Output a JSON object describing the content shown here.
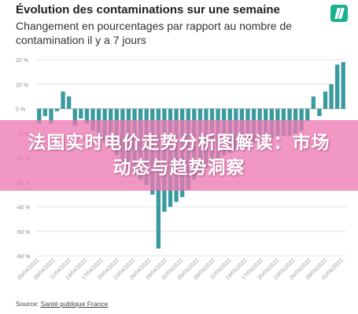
{
  "header": {
    "title": "Évolution des contaminations sur une semaine",
    "subtitle": "Changement en pourcentages par rapport au nombre de contamination il y a 7 jours"
  },
  "logo": {
    "icon": "huffpost-logo-icon",
    "color": "#19b38e"
  },
  "overlay": {
    "text": "法国实时电价走势分析图解读：市场动态与趋势洞察"
  },
  "source": {
    "label": "Source: ",
    "link_text": "Santé publique France"
  },
  "chart_data": {
    "type": "bar",
    "title": "Évolution des contaminations sur une semaine",
    "subtitle": "Changement en pourcentages par rapport au nombre de contamination il y a 7 jours",
    "bar_color": "#3a9a9e",
    "ylim": [
      -60,
      20
    ],
    "yticks": [
      -60,
      -50,
      -40,
      -30,
      -20,
      -10,
      0,
      10,
      20
    ],
    "ytick_labels": [
      "-60 %",
      "-50 %",
      "-40 %",
      "-30 %",
      "-20 %",
      "-10 %",
      "0 %",
      "10 %",
      "20 %"
    ],
    "xtick_labels": [
      "05/04/2022",
      "08/04/2022",
      "11/04/2022",
      "14/04/2022",
      "17/04/2022",
      "20/04/2022",
      "23/04/2022",
      "26/04/2022",
      "29/04/2022",
      "02/05/2022",
      "05/05/2022",
      "08/05/2022",
      "11/05/2022",
      "14/05/2022",
      "17/05/2022",
      "20/05/2022",
      "23/05/2022",
      "26/05/2022",
      "29/05/2022",
      "02/06/2022"
    ],
    "grid": true,
    "values": [
      -6,
      -3,
      -6,
      -1,
      7,
      5,
      -7,
      -4,
      -6,
      -9,
      -12,
      -14,
      -16,
      -19,
      -22,
      -25,
      -27,
      -29,
      -31,
      -35,
      -57,
      -42,
      -40,
      -38,
      -36,
      -33,
      -29,
      -26,
      -24,
      -22,
      -20,
      -19,
      -18,
      -17,
      -16,
      -15,
      -14,
      -13,
      -12,
      -12,
      -11,
      -11,
      -11,
      -10,
      -9,
      -5,
      5,
      -3,
      7,
      10,
      18,
      19
    ]
  }
}
